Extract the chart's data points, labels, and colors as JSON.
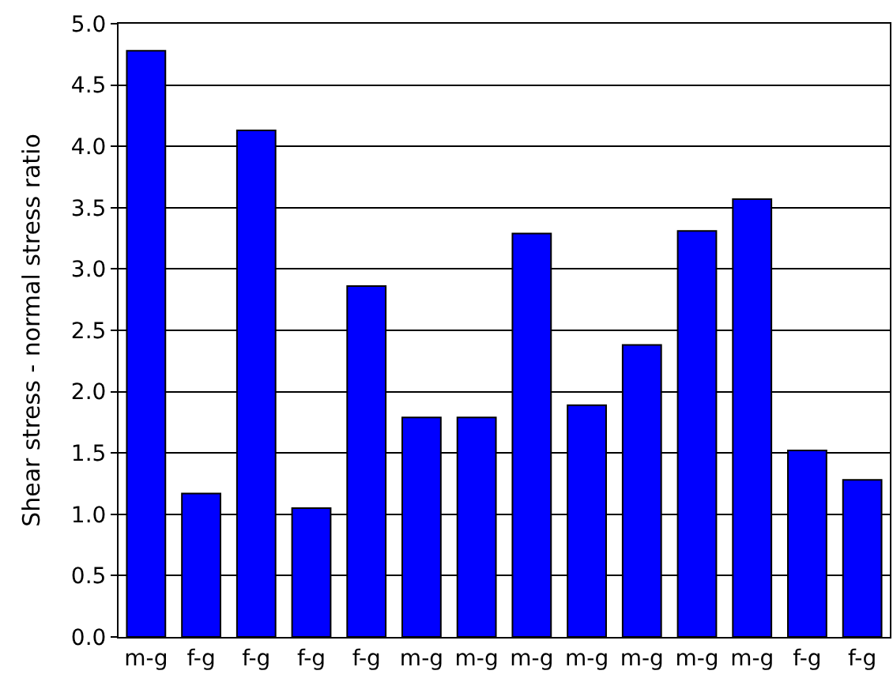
{
  "chart_data": {
    "type": "bar",
    "ylabel": "Shear stress - normal stress ratio",
    "categories": [
      "m-g",
      "f-g",
      "f-g",
      "f-g",
      "f-g",
      "m-g",
      "m-g",
      "m-g",
      "m-g",
      "m-g",
      "m-g",
      "m-g",
      "f-g",
      "f-g"
    ],
    "values": [
      4.78,
      1.17,
      4.13,
      1.05,
      2.86,
      1.79,
      1.79,
      3.29,
      1.89,
      2.38,
      3.31,
      3.57,
      1.52,
      1.28
    ],
    "color": "#0000ff",
    "ylim": [
      0,
      5
    ],
    "yticks": [
      {
        "value": 0,
        "label": "0.0"
      },
      {
        "value": 0.5,
        "label": "0.5"
      },
      {
        "value": 1,
        "label": "1.0"
      },
      {
        "value": 1.5,
        "label": "1.5"
      },
      {
        "value": 2,
        "label": "2.0"
      },
      {
        "value": 2.5,
        "label": "2.5"
      },
      {
        "value": 3,
        "label": "3.0"
      },
      {
        "value": 3.5,
        "label": "3.5"
      },
      {
        "value": 4,
        "label": "4.0"
      },
      {
        "value": 4.5,
        "label": "4.5"
      },
      {
        "value": 5,
        "label": "5.0"
      }
    ],
    "grid": "y"
  }
}
